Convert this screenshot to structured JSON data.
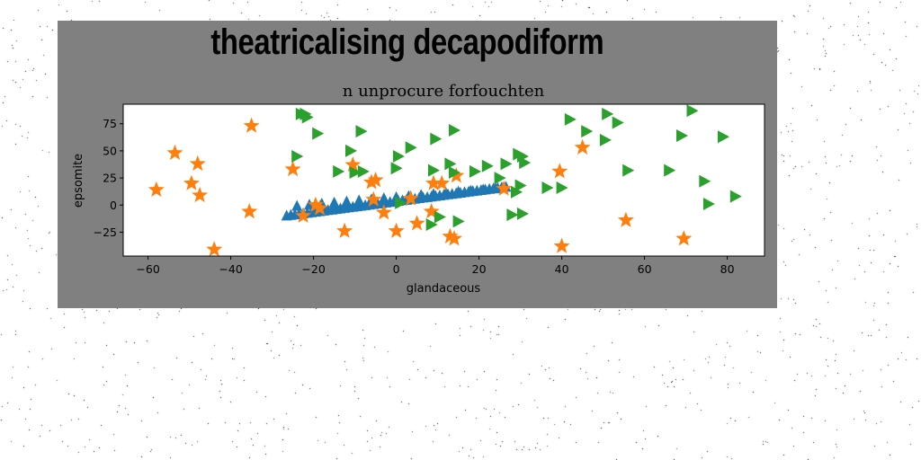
{
  "header": {
    "title": "theatricalising decapodiform"
  },
  "chart_data": {
    "type": "scatter",
    "title": "n unprocure forfouchten",
    "xlabel": "glandaceous",
    "ylabel": "epsomite",
    "xlim": [
      -66,
      89
    ],
    "ylim": [
      -47,
      93
    ],
    "xticks": [
      -60,
      -40,
      -20,
      0,
      20,
      40,
      60,
      80
    ],
    "yticks": [
      -25,
      0,
      25,
      50,
      75
    ],
    "grid": false,
    "series": [
      {
        "marker": "triangle-up",
        "color": "#1f77b4",
        "x": [
          -26.5,
          -25.5,
          -24.5,
          -23.5,
          -22.5,
          -21.5,
          -20.5,
          -19.5,
          -18.5,
          -17.5,
          -16.5,
          -15.5,
          -14.5,
          -13.5,
          -12.5,
          -11.5,
          -10.5,
          -9.5,
          -8.5,
          -7.5,
          -6.5,
          -5.5,
          -4.5,
          -3.5,
          -2.5,
          -1.5,
          -0.5,
          0.5,
          1.5,
          2.5,
          3.5,
          4.5,
          5.5,
          6.5,
          7.5,
          8.5,
          9.5,
          10.5,
          11.5,
          12.5,
          13.5,
          14.5,
          15.5,
          16.5,
          17.5,
          18.5,
          19.5,
          20.5,
          21.5,
          22.5,
          23.5,
          24.5,
          25.5,
          26.5,
          -24,
          -21,
          -18,
          -15,
          -12,
          -9,
          -6,
          -3,
          0,
          3,
          6,
          9,
          12,
          15,
          18,
          21,
          24
        ],
        "y": [
          -10,
          -9.5,
          -9,
          -8.5,
          -8,
          -7.5,
          -7,
          -6.5,
          -6,
          -5.5,
          -5,
          -4.5,
          -4,
          -3.5,
          -3,
          -2.5,
          -2,
          -1.5,
          -1,
          -0.5,
          0,
          0.5,
          1,
          1.5,
          2,
          2.5,
          3,
          3.5,
          4,
          4.5,
          5,
          5.5,
          6,
          6.5,
          7,
          7.5,
          8,
          8.5,
          9,
          9.5,
          10,
          10.5,
          11,
          11.5,
          12,
          12.5,
          13,
          13.5,
          14,
          14.5,
          15,
          15.5,
          16,
          16.5,
          -1,
          0,
          1,
          2,
          3,
          4,
          5,
          6,
          7,
          8,
          9,
          10,
          11,
          12,
          13,
          14,
          15
        ]
      },
      {
        "marker": "star",
        "color": "#ff7f0e",
        "x": [
          -58,
          -53.5,
          -49.5,
          -48,
          -47.5,
          -44,
          -35.5,
          -35,
          -25,
          -22.5,
          -19.5,
          -18.5,
          -12.5,
          -10.5,
          -6,
          -5.5,
          -5,
          -3,
          0,
          3.5,
          5,
          8.5,
          9,
          11,
          13,
          14,
          14.5,
          26,
          39.5,
          40,
          45,
          55.5,
          69.5
        ],
        "y": [
          14,
          48,
          20,
          38,
          9,
          -41,
          -6,
          73,
          33,
          -10,
          0,
          -3,
          -24,
          37,
          21,
          5,
          23,
          -7,
          -24,
          6,
          -17,
          -6,
          20,
          20,
          -29,
          -31,
          27,
          15,
          31,
          -38,
          53,
          -14,
          -31
        ]
      },
      {
        "marker": "triangle-right",
        "color": "#2ca02c",
        "x": [
          -23,
          -22,
          -21.5,
          -24,
          -19,
          -11,
          -14,
          -10,
          -8.5,
          -8,
          0,
          0.5,
          3.5,
          1,
          9,
          9.5,
          8.5,
          10.5,
          14,
          14,
          13,
          15,
          19,
          22,
          25,
          26.5,
          28,
          29,
          30.5,
          29.5,
          31,
          30.5,
          30,
          36.5,
          40,
          42,
          46,
          50.5,
          51,
          53.5,
          56,
          66,
          69,
          71.5,
          74.5,
          75.5,
          79,
          82
        ],
        "y": [
          84,
          84,
          81,
          45,
          66,
          50,
          31,
          30,
          68,
          31,
          34,
          45,
          53,
          2,
          32,
          61,
          -18,
          -11,
          30,
          69,
          38,
          -15,
          31,
          36,
          25,
          38,
          -9,
          12,
          45,
          47,
          39,
          -8,
          18,
          16,
          16,
          79,
          68,
          60,
          84,
          76,
          32,
          32,
          64,
          87,
          22,
          1,
          63,
          8
        ]
      }
    ]
  }
}
